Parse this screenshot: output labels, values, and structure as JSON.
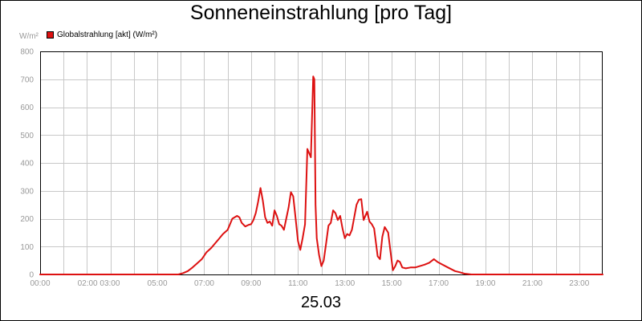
{
  "title": "Sonneneinstrahlung [pro Tag]",
  "date": "25.03",
  "ylabel_text": "W/m²",
  "colors": {
    "series": "#dd1111",
    "grid": "#c8c8c8",
    "tick": "#999999",
    "axis": "#000000"
  },
  "chart_data": {
    "type": "line",
    "title": "Sonneneinstrahlung [pro Tag]",
    "xlabel": "25.03",
    "ylabel": "W/m²",
    "ylim": [
      0,
      800
    ],
    "xlim": [
      0,
      24
    ],
    "grid": true,
    "legend_position": "top-left",
    "y_ticks": [
      "0",
      "100",
      "200",
      "300",
      "400",
      "500",
      "600",
      "700",
      "800"
    ],
    "x_ticks": [
      {
        "h": 0,
        "label": "00:00"
      },
      {
        "h": 2.5,
        "label": "02:00 03:00"
      },
      {
        "h": 5,
        "label": "05:00"
      },
      {
        "h": 7,
        "label": "07:00"
      },
      {
        "h": 9,
        "label": "09:00"
      },
      {
        "h": 11,
        "label": "11:00"
      },
      {
        "h": 13,
        "label": "13:00"
      },
      {
        "h": 15,
        "label": "15:00"
      },
      {
        "h": 17,
        "label": "17:00"
      },
      {
        "h": 19,
        "label": "19:00"
      },
      {
        "h": 21,
        "label": "21:00"
      },
      {
        "h": 23,
        "label": "23:00"
      }
    ],
    "series": [
      {
        "name": "Globalstrahlung [akt] (W/m²)",
        "x": [
          0,
          5.9,
          6.1,
          6.3,
          6.5,
          6.7,
          6.9,
          7.1,
          7.3,
          7.5,
          7.6,
          7.8,
          8.0,
          8.2,
          8.4,
          8.5,
          8.6,
          8.75,
          8.9,
          9.0,
          9.1,
          9.2,
          9.3,
          9.4,
          9.5,
          9.6,
          9.7,
          9.8,
          9.9,
          10.0,
          10.1,
          10.2,
          10.3,
          10.4,
          10.5,
          10.6,
          10.7,
          10.8,
          10.9,
          11.0,
          11.1,
          11.2,
          11.3,
          11.4,
          11.55,
          11.6,
          11.65,
          11.7,
          11.75,
          11.8,
          11.9,
          12.0,
          12.1,
          12.2,
          12.3,
          12.4,
          12.5,
          12.6,
          12.7,
          12.8,
          12.9,
          13.0,
          13.1,
          13.2,
          13.3,
          13.5,
          13.6,
          13.7,
          13.8,
          13.95,
          14.05,
          14.15,
          14.25,
          14.4,
          14.5,
          14.6,
          14.7,
          14.85,
          14.95,
          15.05,
          15.15,
          15.25,
          15.35,
          15.45,
          15.6,
          15.8,
          16.0,
          16.2,
          16.4,
          16.6,
          16.8,
          16.95,
          17.1,
          17.4,
          17.7,
          17.9,
          18.1,
          18.4,
          18.7,
          19.0,
          24.0
        ],
        "y": [
          0,
          0,
          5,
          12,
          25,
          40,
          55,
          80,
          95,
          115,
          125,
          145,
          160,
          200,
          210,
          205,
          185,
          172,
          178,
          180,
          195,
          220,
          260,
          310,
          265,
          205,
          185,
          190,
          175,
          230,
          210,
          180,
          175,
          160,
          200,
          240,
          295,
          280,
          200,
          120,
          88,
          130,
          180,
          450,
          420,
          560,
          710,
          700,
          250,
          130,
          70,
          30,
          50,
          110,
          175,
          185,
          230,
          220,
          195,
          210,
          165,
          130,
          145,
          140,
          160,
          250,
          268,
          270,
          195,
          225,
          190,
          180,
          165,
          65,
          55,
          135,
          170,
          150,
          80,
          15,
          30,
          50,
          45,
          25,
          22,
          25,
          25,
          30,
          35,
          42,
          55,
          45,
          38,
          25,
          12,
          8,
          3,
          0,
          0,
          0,
          0
        ]
      }
    ]
  }
}
